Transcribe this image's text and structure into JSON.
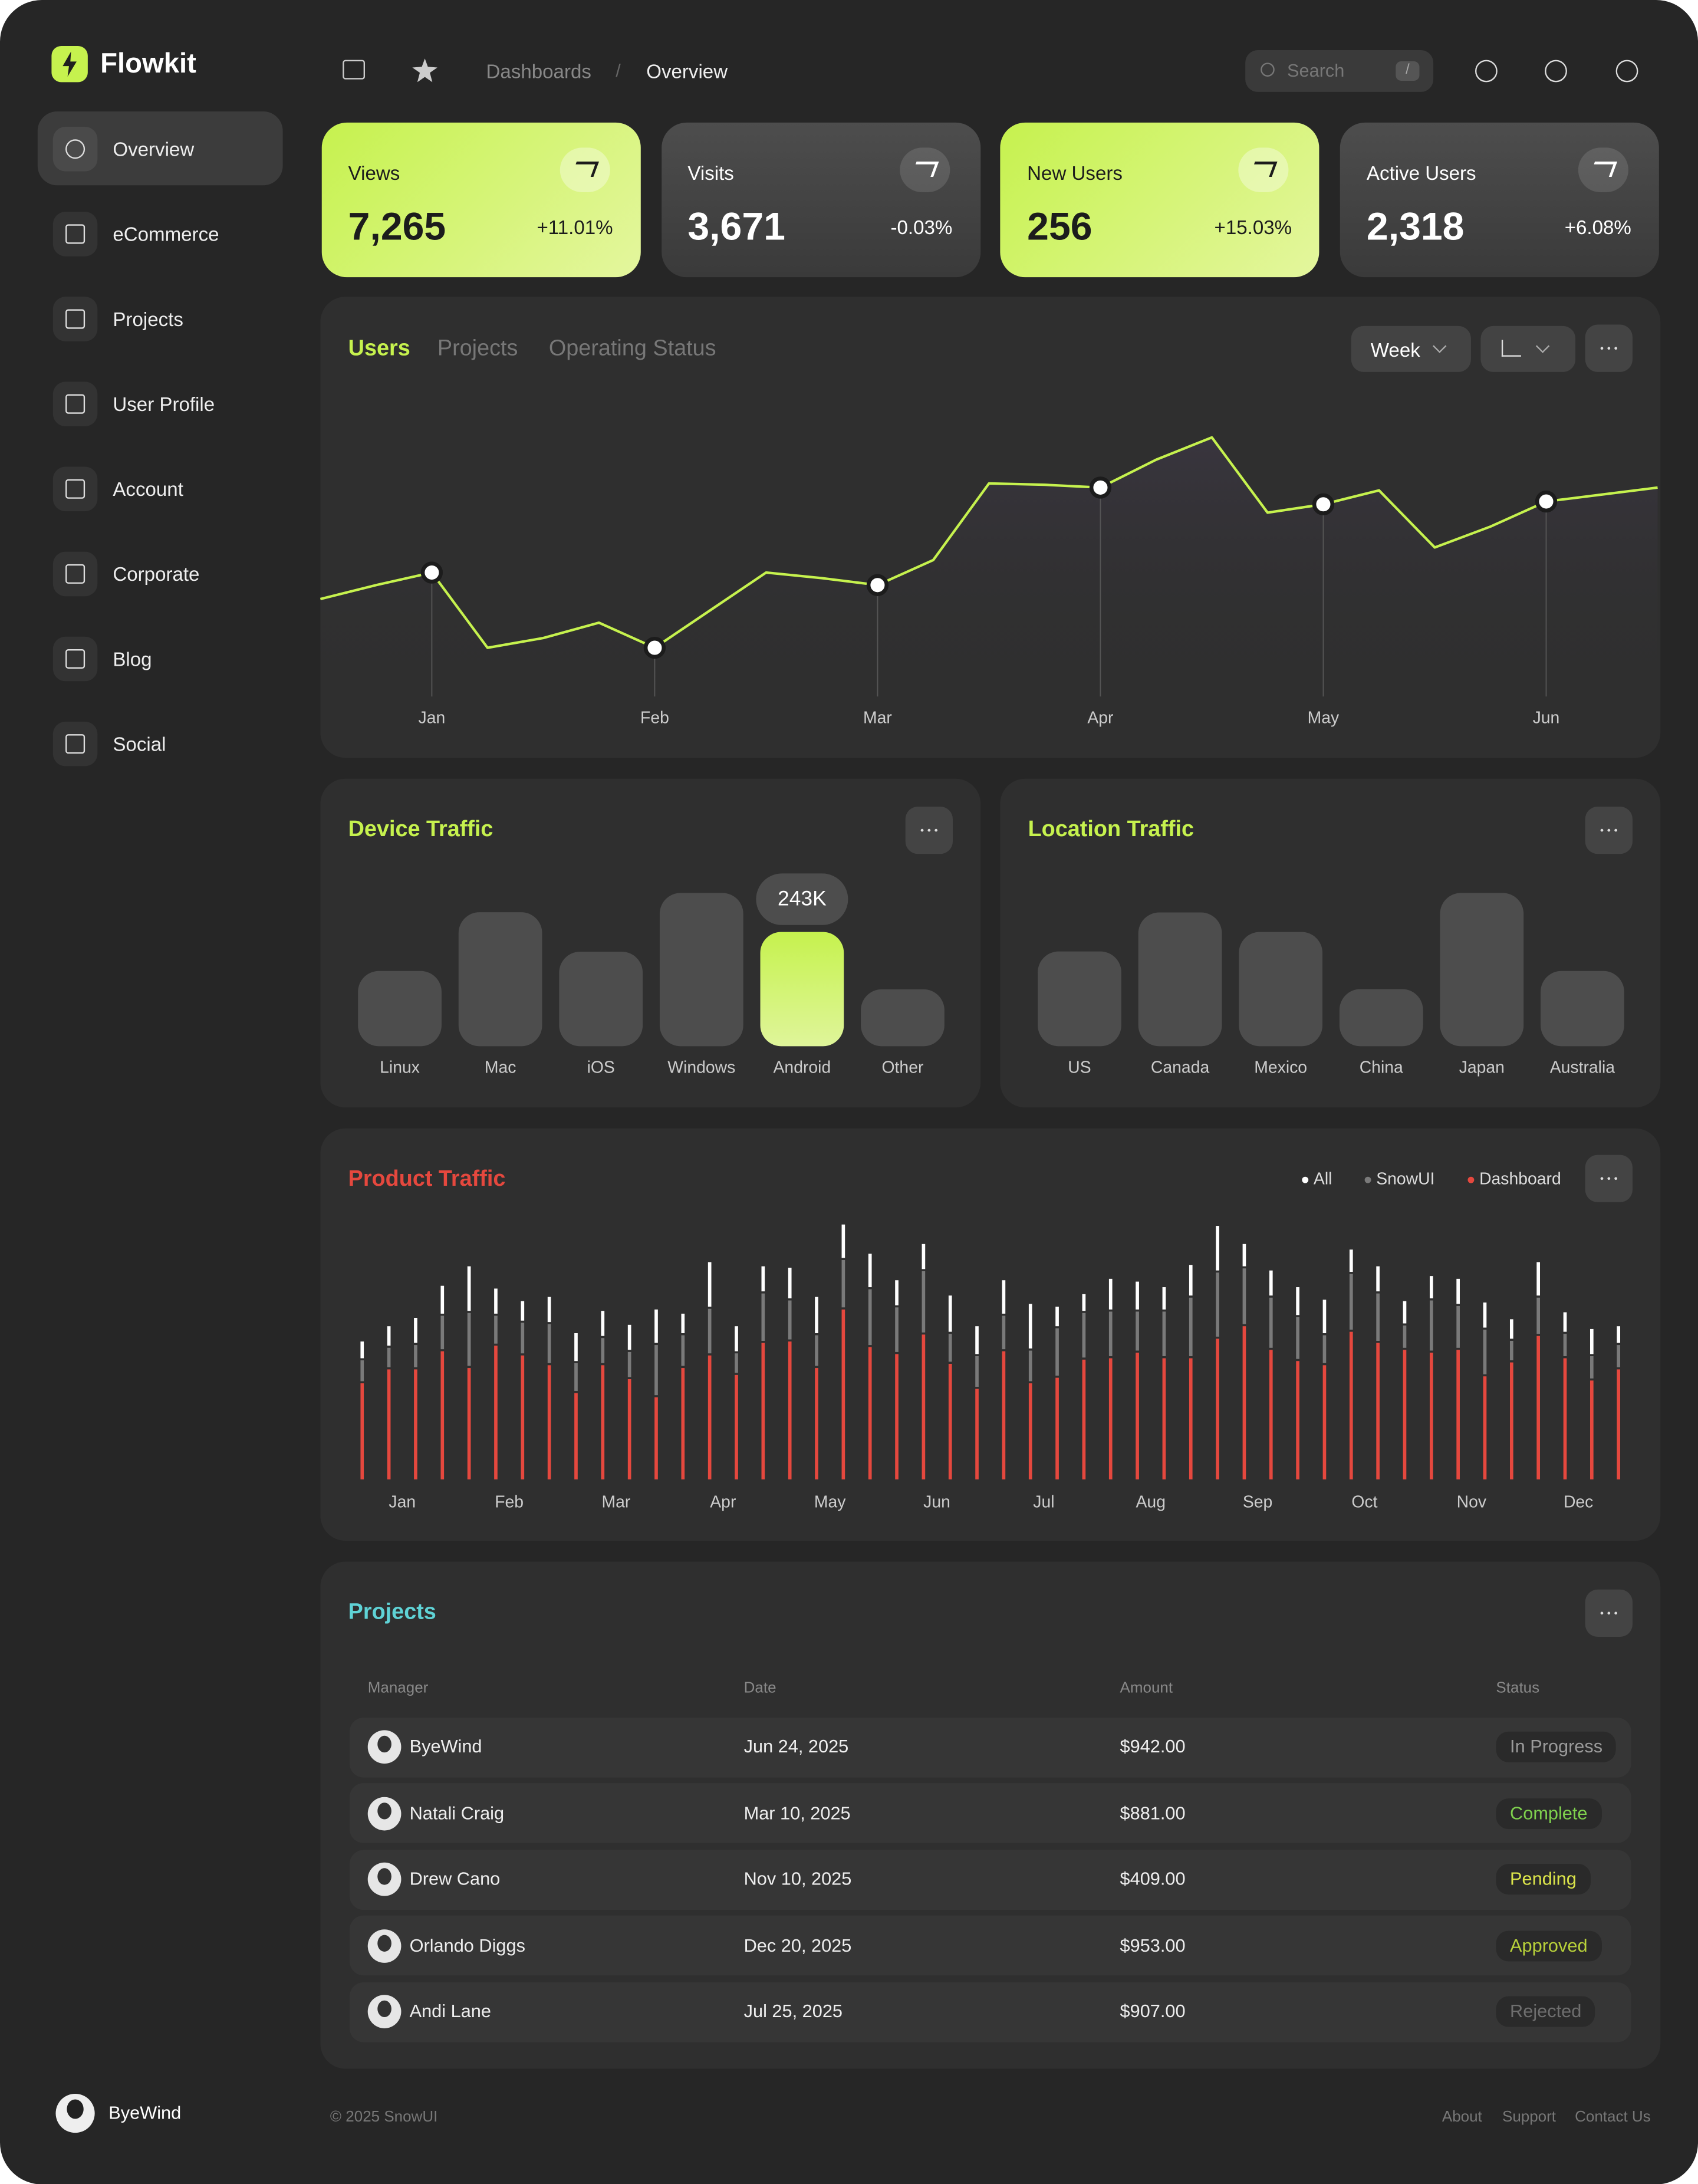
{
  "sidebar": {
    "brand": "Flowkit",
    "nav": [
      "Overview",
      "eCommerce",
      "Projects",
      "User Profile",
      "Account",
      "Corporate",
      "Blog",
      "Social"
    ],
    "user": "ByeWind"
  },
  "header": {
    "breadcrumbs": [
      "Dashboards",
      "Overview"
    ],
    "separator": "/",
    "search": "Search",
    "shortcut": "/"
  },
  "stats": [
    {
      "label": "Views",
      "value": "7,265",
      "change": "+11.01%",
      "color": "#c6f24e"
    },
    {
      "label": "Visits",
      "value": "3,671",
      "change": "-0.03%",
      "color": "#4d4d4d"
    },
    {
      "label": "New Users",
      "value": "256",
      "change": "+15.03%",
      "color": "#c6f24e"
    },
    {
      "label": "Active Users",
      "value": "2,318",
      "change": "+6.08%",
      "color": "#4d4d4d"
    }
  ],
  "chart_data": [
    {
      "type": "line",
      "tabs": [
        "Users",
        "Projects",
        "Operating Status"
      ],
      "period": "Week",
      "color": "#c6f24e",
      "categories": [
        null,
        null,
        "Jan",
        null,
        null,
        null,
        "Feb",
        null,
        null,
        null,
        "Mar",
        null,
        null,
        null,
        "Apr",
        null,
        null,
        null,
        "May",
        null,
        null,
        null,
        "Jun",
        null,
        null
      ],
      "values": [
        100,
        110,
        119,
        65,
        72,
        83,
        65,
        92,
        119,
        115,
        110,
        128,
        183,
        182,
        180,
        200,
        216,
        162,
        168,
        178,
        137,
        152,
        170,
        175,
        180
      ]
    },
    {
      "type": "bar",
      "title": "Device Traffic",
      "color": "#4d4d4d",
      "highlight_color": "#c6f24e",
      "categories": [
        "Linux",
        "Mac",
        "iOS",
        "Windows",
        "Android",
        "Other"
      ],
      "values": [
        160000,
        285000,
        201000,
        326000,
        243000,
        121000
      ],
      "value_labels": [
        null,
        null,
        null,
        null,
        "243K",
        null
      ]
    },
    {
      "type": "bar",
      "title": "Location Traffic",
      "color": "#4d4d4d",
      "categories": [
        "US",
        "Canada",
        "Mexico",
        "China",
        "Japan",
        "Australia"
      ],
      "values": [
        68,
        96,
        82,
        41,
        110,
        54
      ]
    },
    {
      "type": "stacked_bar",
      "title": "Product Traffic",
      "months": [
        "Jan",
        "Feb",
        "Mar",
        "Apr",
        "May",
        "Jun",
        "Jul",
        "Aug",
        "Sep",
        "Oct",
        "Nov",
        "Dec"
      ],
      "series": [
        {
          "name": "Dashboard",
          "color": "#e5483e",
          "values": [
            69,
            79,
            79,
            92,
            80,
            96,
            89,
            82,
            62,
            82,
            72,
            59,
            80,
            89,
            75,
            98,
            99,
            80,
            122,
            95,
            90,
            104,
            83,
            65,
            92,
            69,
            73,
            86,
            87,
            91,
            87,
            87,
            101,
            110,
            93,
            85,
            82,
            106,
            98,
            93,
            91,
            93,
            74,
            84,
            103,
            87,
            71,
            79
          ]
        },
        {
          "name": "SnowUI",
          "color": "#7a7a7a",
          "values": [
            15,
            14,
            16,
            24,
            38,
            20,
            22,
            28,
            20,
            18,
            18,
            36,
            22,
            32,
            14,
            34,
            28,
            22,
            34,
            40,
            32,
            44,
            20,
            22,
            24,
            22,
            34,
            32,
            32,
            28,
            32,
            42,
            46,
            40,
            36,
            30,
            20,
            40,
            34,
            16,
            36,
            30,
            32,
            14,
            26,
            16,
            16,
            16
          ]
        },
        {
          "name": "All",
          "color": "#ffffff",
          "values": [
            12,
            14,
            18,
            20,
            32,
            18,
            14,
            18,
            20,
            18,
            18,
            24,
            14,
            32,
            18,
            18,
            22,
            26,
            24,
            24,
            18,
            18,
            26,
            20,
            24,
            32,
            14,
            12,
            22,
            20,
            16,
            22,
            32,
            16,
            18,
            20,
            24,
            16,
            18,
            16,
            16,
            18,
            18,
            14,
            24,
            14,
            18,
            12
          ]
        }
      ]
    }
  ],
  "projects": {
    "title": "Projects",
    "columns": [
      "Manager",
      "Date",
      "Amount",
      "Status"
    ],
    "rows": [
      {
        "manager": "ByeWind",
        "date": "Jun 24, 2025",
        "amount": "$942.00",
        "status": "In Progress",
        "status_color": "#9a9a9a"
      },
      {
        "manager": "Natali Craig",
        "date": "Mar 10, 2025",
        "amount": "$881.00",
        "status": "Complete",
        "status_color": "#7fd14e"
      },
      {
        "manager": "Drew Cano",
        "date": "Nov 10, 2025",
        "amount": "$409.00",
        "status": "Pending",
        "status_color": "#dbe44a"
      },
      {
        "manager": "Orlando Diggs",
        "date": "Dec 20, 2025",
        "amount": "$953.00",
        "status": "Approved",
        "status_color": "#b9d23a"
      },
      {
        "manager": "Andi Lane",
        "date": "Jul 25, 2025",
        "amount": "$907.00",
        "status": "Rejected",
        "status_color": "#6e6e6e"
      }
    ]
  },
  "footer": {
    "copyright": "© 2025 SnowUI",
    "links": [
      "About",
      "Support",
      "Contact Us"
    ]
  }
}
